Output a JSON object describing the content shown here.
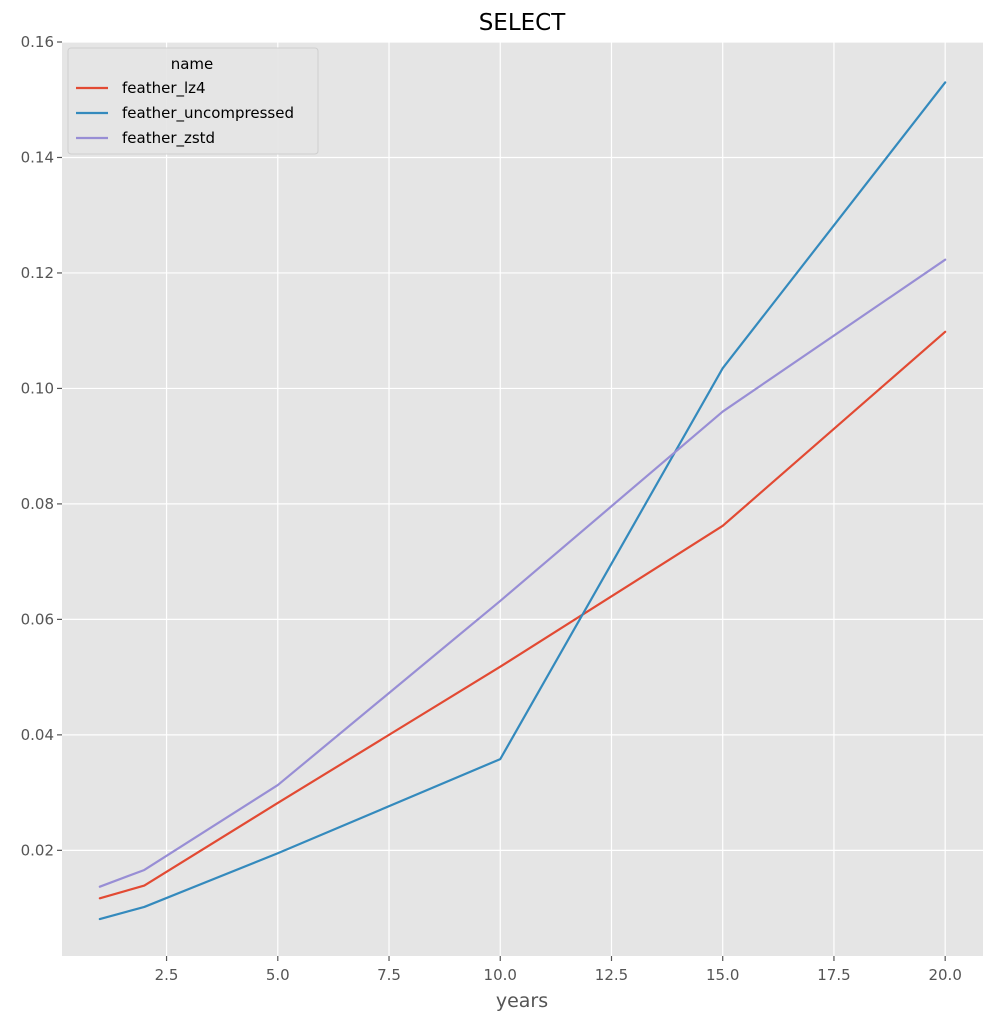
{
  "chart_data": {
    "type": "line",
    "title": "SELECT",
    "xlabel": "years",
    "ylabel": "",
    "xlim": [
      0.15,
      20.85
    ],
    "ylim": [
      0.0017,
      0.16
    ],
    "xticks": [
      2.5,
      5.0,
      7.5,
      10.0,
      12.5,
      15.0,
      17.5,
      20.0
    ],
    "xtick_labels": [
      "2.5",
      "5.0",
      "7.5",
      "10.0",
      "12.5",
      "15.0",
      "17.5",
      "20.0"
    ],
    "yticks": [
      0.02,
      0.04,
      0.06,
      0.08,
      0.1,
      0.12,
      0.14,
      0.16
    ],
    "ytick_labels": [
      "0.02",
      "0.04",
      "0.06",
      "0.08",
      "0.10",
      "0.12",
      "0.14",
      "0.16"
    ],
    "grid": true,
    "legend": {
      "title": "name",
      "placement": "top-left"
    },
    "x": [
      1,
      2,
      5,
      10,
      15,
      20
    ],
    "series": [
      {
        "name": "feather_lz4",
        "color": "#E24A33",
        "values": [
          0.0117,
          0.0139,
          0.0282,
          0.0518,
          0.0762,
          0.1098
        ]
      },
      {
        "name": "feather_uncompressed",
        "color": "#348ABD",
        "values": [
          0.0081,
          0.0102,
          0.0195,
          0.0358,
          0.1035,
          0.153
        ]
      },
      {
        "name": "feather_zstd",
        "color": "#988ED5",
        "values": [
          0.0137,
          0.0166,
          0.0313,
          0.0632,
          0.096,
          0.1223
        ]
      }
    ]
  }
}
